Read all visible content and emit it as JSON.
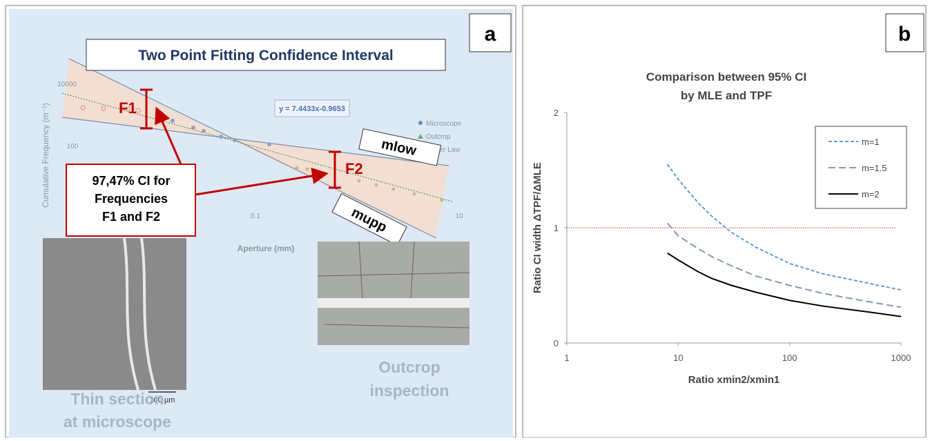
{
  "panel_a": {
    "panel_label": "a",
    "title": "Two Point Fitting Confidence Interval",
    "y_axis_label": "Cumulative Frequency (m⁻¹)",
    "x_axis_label": "Aperture (mm)",
    "tick_labels": [
      "10000",
      "100",
      "0.1",
      "10"
    ],
    "equation": "y = 7.4433x-0.9653",
    "legend": [
      "Microscope",
      "Outcrop",
      "Power Law"
    ],
    "f1": "F1",
    "f2": "F2",
    "m_low": "mlow",
    "m_upp": "mupp",
    "callout": [
      "97,47% CI for",
      "Frequencies",
      "F1 and F2"
    ],
    "scale_bar": "100 µm",
    "thin_section": [
      "Thin section",
      "at microscope"
    ],
    "outcrop": [
      "Outcrop",
      "inspection"
    ]
  },
  "panel_b_label": "b",
  "chart_data": {
    "type": "line",
    "title": [
      "Comparison between 95% CI",
      "by MLE and TPF"
    ],
    "x_label": "Ratio xmin2/xmin1",
    "y_label": "Ratio CI width ΔTPF/ΔMLE",
    "xscale": "log",
    "xlim": [
      1,
      1000
    ],
    "xticks": [
      1,
      10,
      100,
      1000
    ],
    "ylim": [
      0,
      2
    ],
    "yticks": [
      0,
      1,
      2
    ],
    "x": [
      8,
      10,
      15,
      20,
      30,
      50,
      100,
      200,
      500,
      1000
    ],
    "series": [
      {
        "name": "m=1",
        "color": "#5b9bd5",
        "line_style": "dashed",
        "values": [
          1.55,
          1.42,
          1.22,
          1.1,
          0.96,
          0.83,
          0.69,
          0.6,
          0.52,
          0.46
        ]
      },
      {
        "name": "m=1.5",
        "color": "#8497b0",
        "line_style": "longdash",
        "values": [
          1.04,
          0.93,
          0.82,
          0.75,
          0.67,
          0.58,
          0.5,
          0.43,
          0.36,
          0.31
        ]
      },
      {
        "name": "m=2",
        "color": "#000000",
        "line_style": "solid",
        "values": [
          0.78,
          0.72,
          0.62,
          0.56,
          0.5,
          0.44,
          0.37,
          0.32,
          0.27,
          0.23
        ]
      }
    ],
    "reference_line": {
      "y": 1,
      "x": [
        1,
        900
      ],
      "color": "#e06666"
    }
  }
}
